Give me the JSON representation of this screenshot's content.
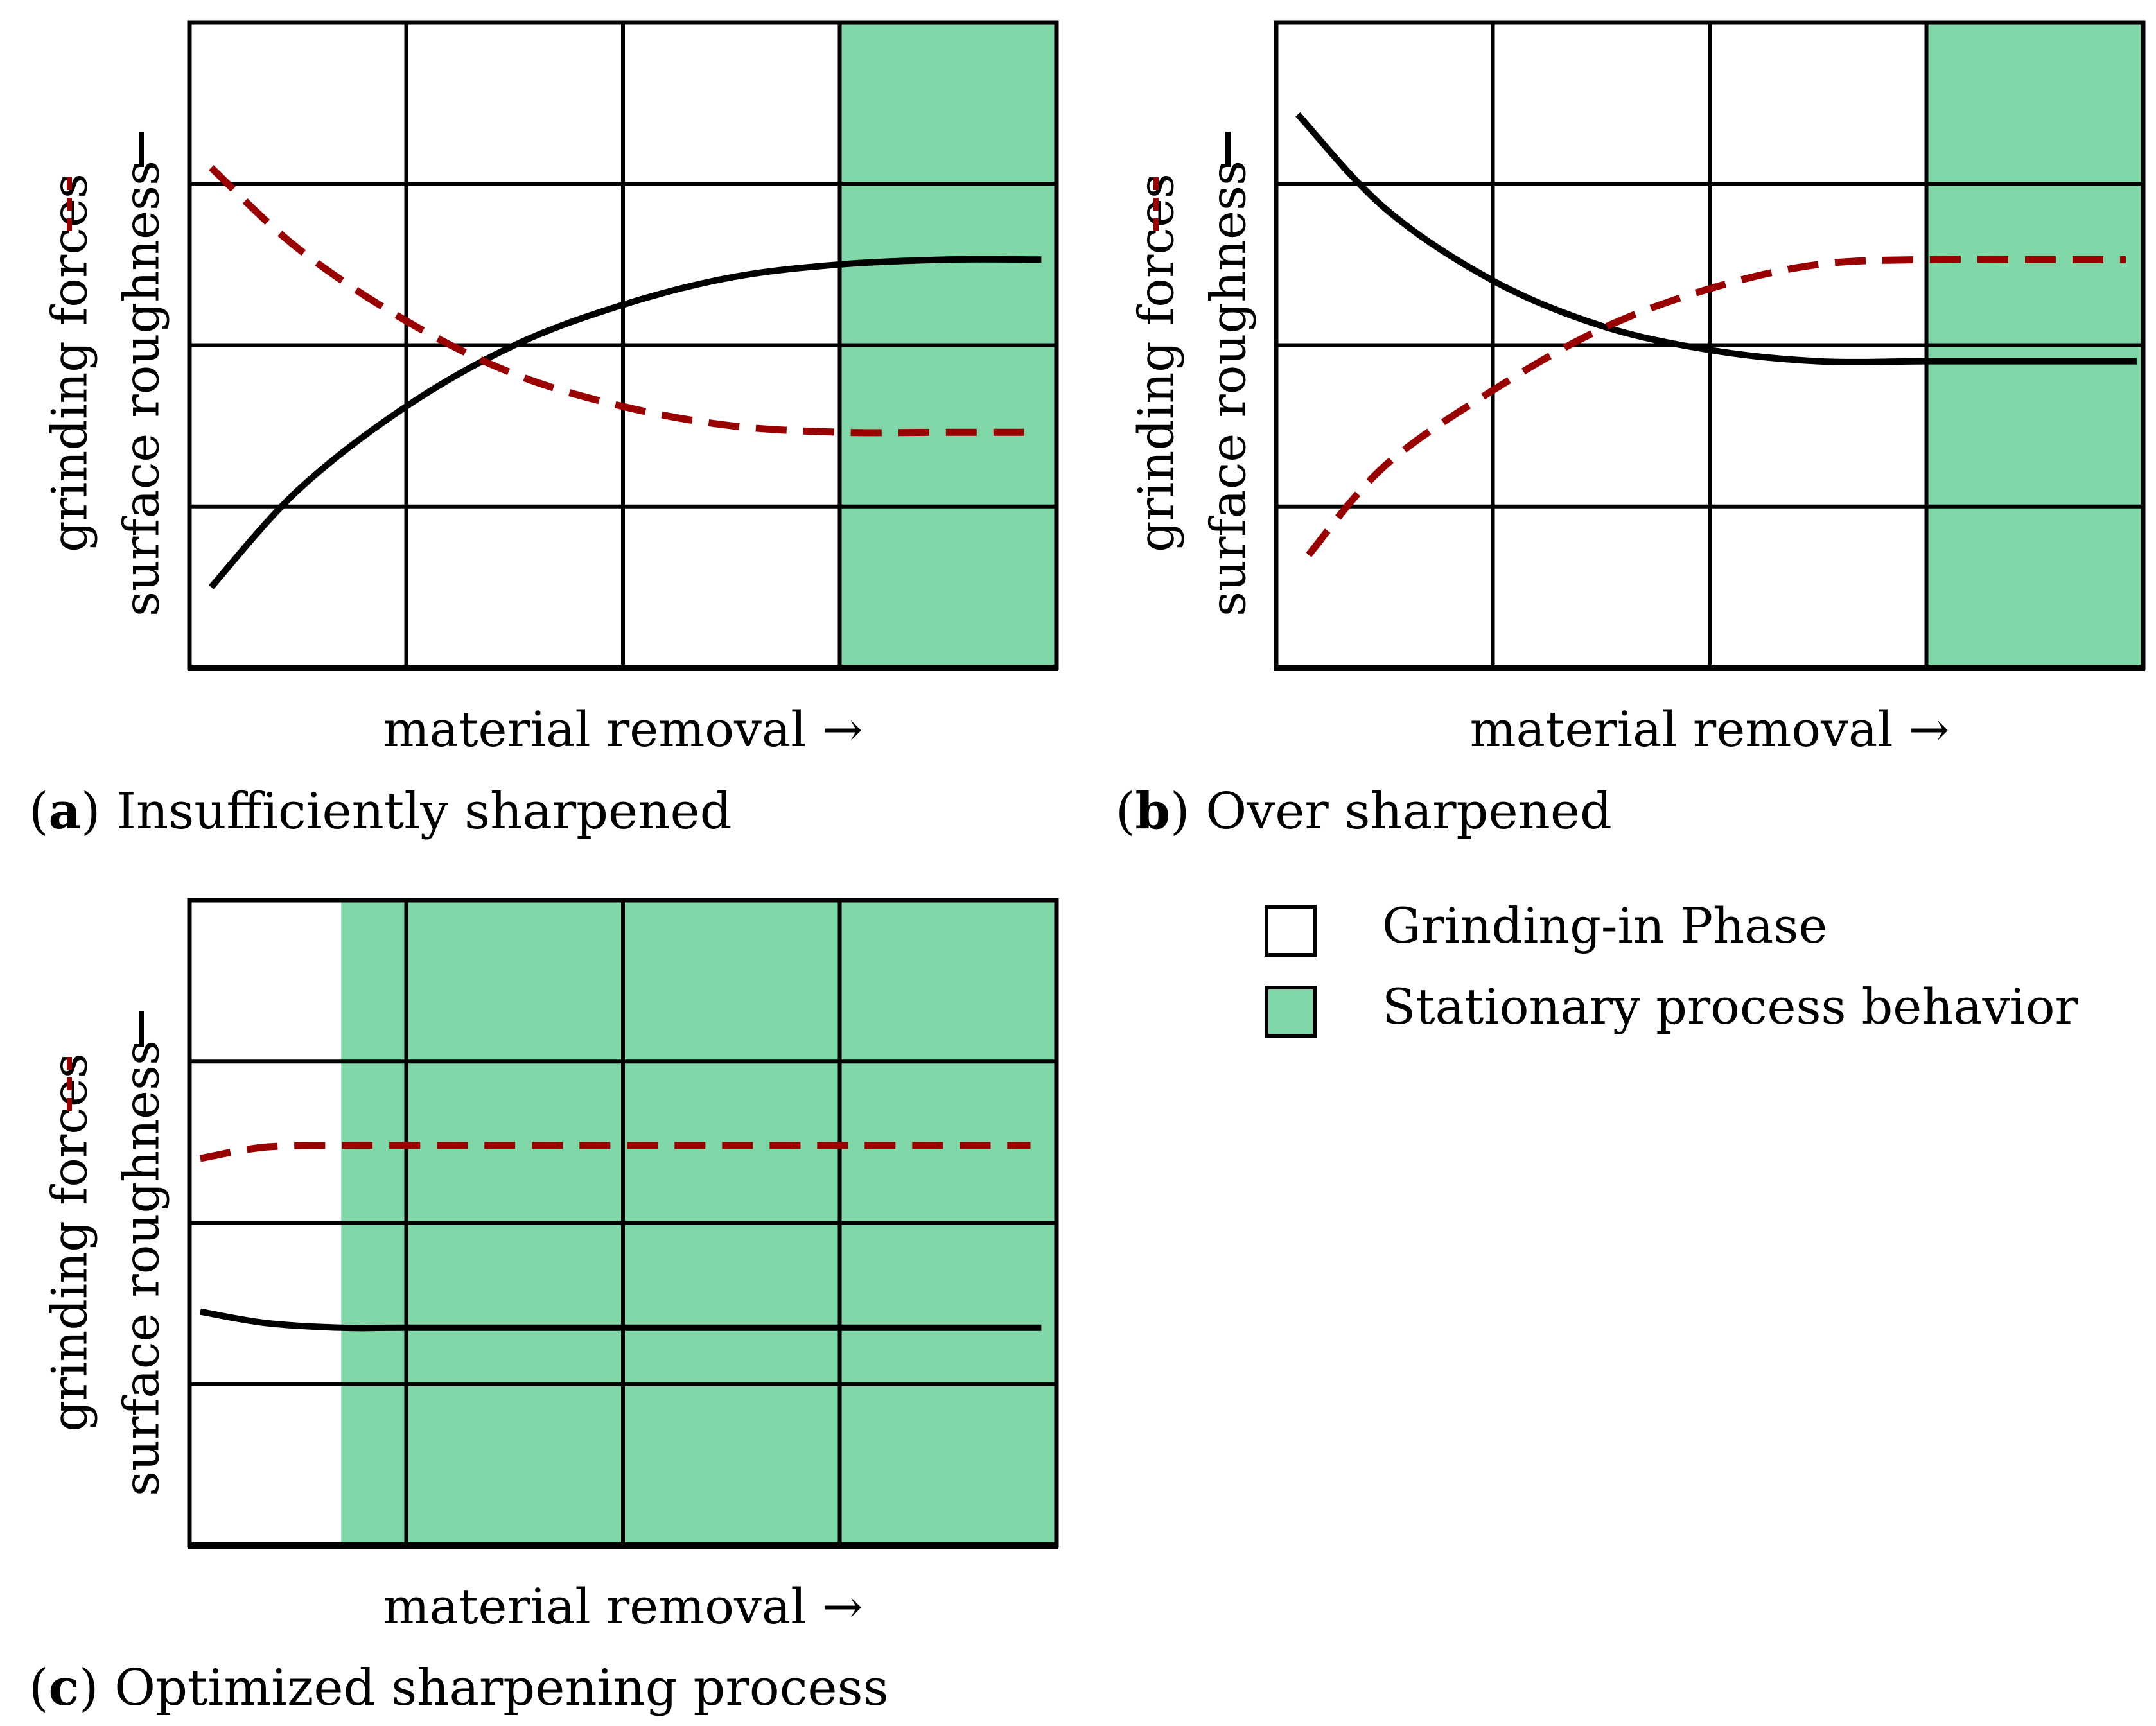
{
  "colors": {
    "stationary_fill": "#80D8A8",
    "roughness_line": "#000000",
    "forces_line": "#990000",
    "grid": "#000000",
    "background": "#ffffff"
  },
  "legend": {
    "items": [
      {
        "label": "Grinding-in Phase",
        "color": "#ffffff"
      },
      {
        "label": "Stationary process behavior",
        "color": "#80D8A8"
      }
    ]
  },
  "chart_data": [
    {
      "type": "line",
      "panel_letter": "a",
      "caption": "Insufficiently sharpened",
      "xlabel": "material removal →",
      "ylabel_forces": "grinding forces",
      "ylabel_roughness": "surface roughness",
      "xlim": [
        0,
        4
      ],
      "ylim": [
        0,
        4
      ],
      "grid": true,
      "stationary_start": 3.0,
      "series": [
        {
          "name": "surface roughness",
          "style": "solid",
          "x": [
            0.1,
            0.5,
            1.0,
            1.5,
            2.0,
            2.5,
            3.0,
            3.5,
            3.93
          ],
          "y": [
            0.5,
            1.1,
            1.62,
            2.0,
            2.25,
            2.42,
            2.5,
            2.53,
            2.53
          ]
        },
        {
          "name": "grinding forces",
          "style": "dashed",
          "x": [
            0.1,
            0.5,
            1.0,
            1.5,
            2.0,
            2.5,
            3.0,
            3.5,
            3.88
          ],
          "y": [
            3.1,
            2.6,
            2.15,
            1.82,
            1.62,
            1.5,
            1.46,
            1.46,
            1.46
          ]
        }
      ]
    },
    {
      "type": "line",
      "panel_letter": "b",
      "caption": "Over sharpened",
      "xlabel": "material removal →",
      "ylabel_forces": "grinding forces",
      "ylabel_roughness": "surface roughness",
      "xlim": [
        0,
        4
      ],
      "ylim": [
        0,
        4
      ],
      "grid": true,
      "stationary_start": 3.0,
      "series": [
        {
          "name": "surface roughness",
          "style": "solid",
          "x": [
            0.1,
            0.5,
            1.0,
            1.5,
            2.0,
            2.5,
            3.0,
            3.5,
            3.97
          ],
          "y": [
            3.43,
            2.85,
            2.4,
            2.12,
            1.97,
            1.9,
            1.9,
            1.9,
            1.9
          ]
        },
        {
          "name": "grinding forces",
          "style": "dashed",
          "x": [
            0.15,
            0.5,
            1.0,
            1.5,
            2.0,
            2.5,
            3.0,
            3.5,
            3.92
          ],
          "y": [
            0.7,
            1.25,
            1.72,
            2.1,
            2.35,
            2.5,
            2.53,
            2.53,
            2.53
          ]
        }
      ]
    },
    {
      "type": "line",
      "panel_letter": "c",
      "caption": "Optimized sharpening process",
      "xlabel": "material removal →",
      "ylabel_forces": "grinding forces",
      "ylabel_roughness": "surface roughness",
      "xlim": [
        0,
        4
      ],
      "ylim": [
        0,
        4
      ],
      "grid": true,
      "stationary_start": 0.7,
      "series": [
        {
          "name": "surface roughness",
          "style": "solid",
          "x": [
            0.05,
            0.35,
            0.7,
            1.0,
            2.0,
            3.0,
            3.93
          ],
          "y": [
            1.45,
            1.38,
            1.35,
            1.35,
            1.35,
            1.35,
            1.35
          ]
        },
        {
          "name": "grinding forces",
          "style": "dashed",
          "x": [
            0.05,
            0.35,
            0.7,
            1.0,
            2.0,
            3.0,
            3.88
          ],
          "y": [
            2.4,
            2.47,
            2.48,
            2.48,
            2.48,
            2.48,
            2.48
          ]
        }
      ]
    }
  ]
}
